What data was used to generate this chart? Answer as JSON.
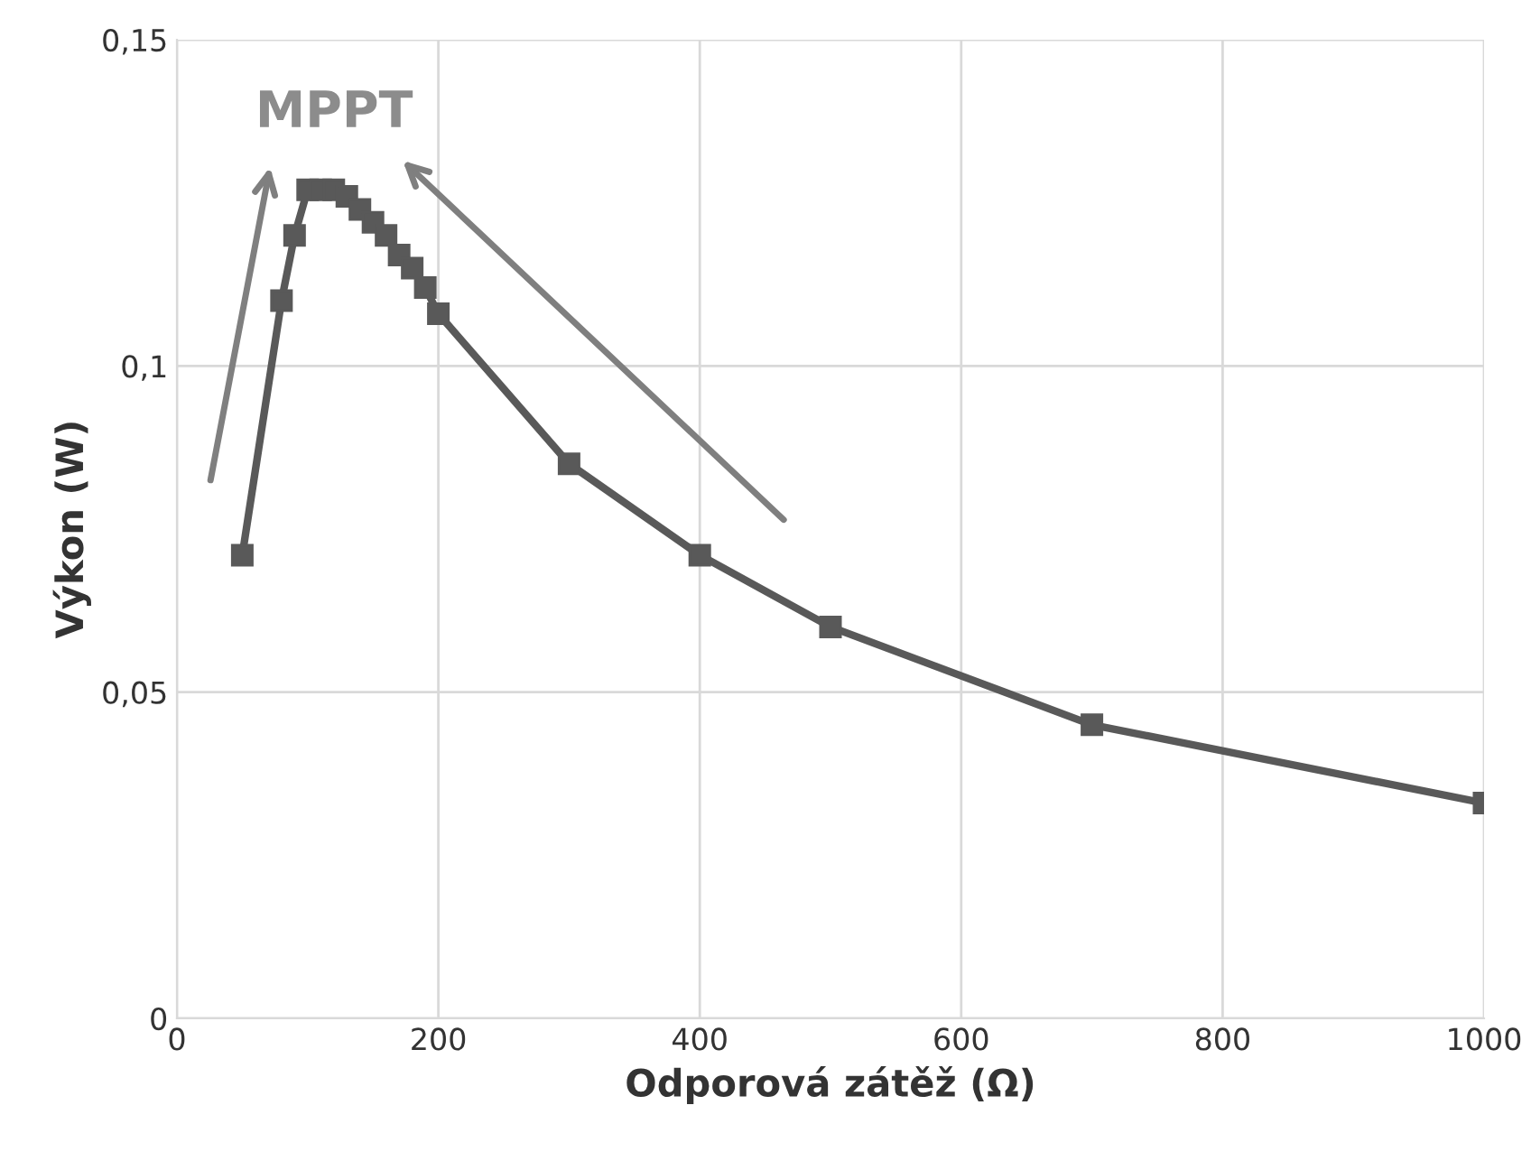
{
  "chart_data": {
    "type": "line",
    "xlabel": "Odporová zátěž (Ω)",
    "ylabel": "Výkon (W)",
    "annotations": [
      "MPPT"
    ],
    "x": [
      50,
      80,
      90,
      100,
      110,
      120,
      130,
      140,
      150,
      160,
      170,
      180,
      190,
      200,
      300,
      400,
      500,
      700,
      1000
    ],
    "series": [
      {
        "color": "#595959",
        "values": [
          0.071,
          0.11,
          0.12,
          0.127,
          0.127,
          0.127,
          0.126,
          0.124,
          0.122,
          0.12,
          0.117,
          0.115,
          0.112,
          0.108,
          0.085,
          0.071,
          0.06,
          0.045,
          0.033
        ]
      }
    ],
    "xlim": [
      0,
      1000
    ],
    "ylim": [
      0,
      0.15
    ],
    "xticks": [
      0,
      200,
      400,
      600,
      800,
      1000
    ],
    "yticks": [
      {
        "value": 0,
        "label": "0"
      },
      {
        "value": 0.05,
        "label": "0,05"
      },
      {
        "value": 0.1,
        "label": "0,1"
      },
      {
        "value": 0.15,
        "label": "0,15"
      }
    ],
    "grid": true,
    "marker": "square",
    "line_style": "solid"
  }
}
